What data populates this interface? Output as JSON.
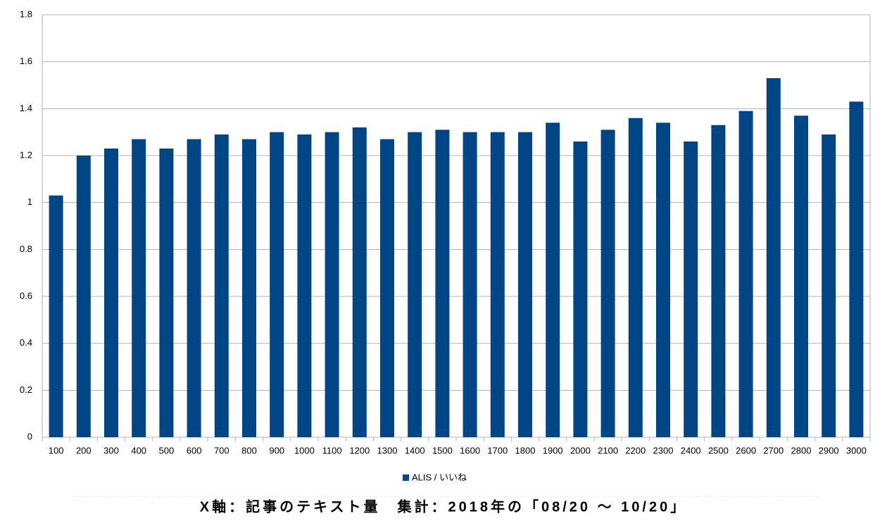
{
  "chart_data": {
    "type": "bar",
    "categories": [
      "100",
      "200",
      "300",
      "400",
      "500",
      "600",
      "700",
      "800",
      "900",
      "1000",
      "1100",
      "1200",
      "1300",
      "1400",
      "1500",
      "1600",
      "1700",
      "1800",
      "1900",
      "2000",
      "2100",
      "2200",
      "2300",
      "2400",
      "2500",
      "2600",
      "2700",
      "2800",
      "2900",
      "3000"
    ],
    "series": [
      {
        "name": "ALIS / いいね",
        "color": "#004586",
        "values": [
          1.03,
          1.2,
          1.23,
          1.27,
          1.23,
          1.27,
          1.29,
          1.27,
          1.3,
          1.29,
          1.3,
          1.32,
          1.27,
          1.3,
          1.31,
          1.3,
          1.3,
          1.3,
          1.34,
          1.26,
          1.31,
          1.36,
          1.34,
          1.26,
          1.33,
          1.39,
          1.53,
          1.37,
          1.29,
          1.43
        ]
      }
    ],
    "ylim": [
      0,
      1.8
    ],
    "yticks": [
      0,
      0.2,
      0.4,
      0.6,
      0.8,
      1,
      1.2,
      1.4,
      1.6,
      1.8
    ],
    "grid": true,
    "legend": "bottom",
    "caption": "X軸：記事のテキスト量　集計：2018年の「08/20 ～ 10/20」"
  }
}
